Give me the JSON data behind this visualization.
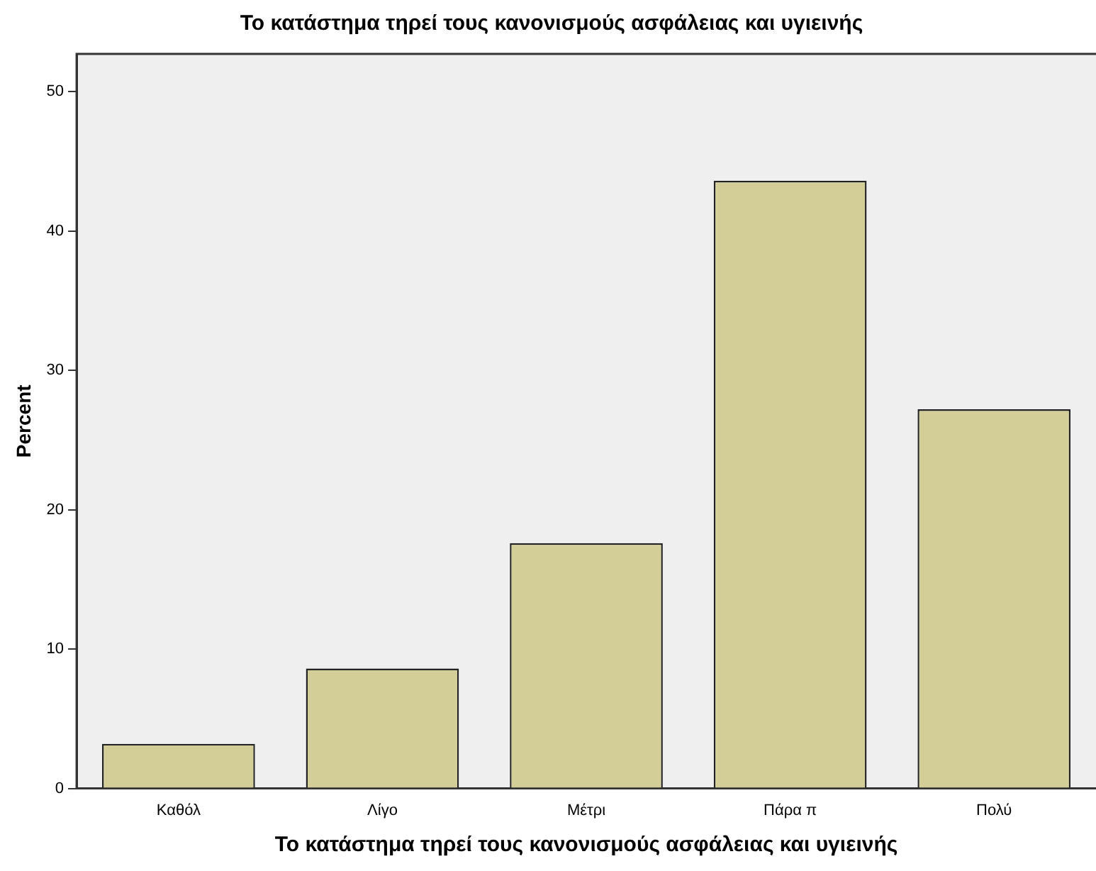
{
  "chart_data": {
    "type": "bar",
    "title": "Το κατάστημα τηρεί τους κανονισμούς ασφάλειας και υγιεινής",
    "xlabel": "Το κατάστημα τηρεί τους κανονισμούς ασφάλειας και υγιεινής",
    "ylabel": "Percent",
    "categories": [
      "Καθόλ",
      "Λίγο",
      "Μέτρι",
      "Πάρα π",
      "Πολύ"
    ],
    "values": [
      3.2,
      8.6,
      17.6,
      43.6,
      27.2
    ],
    "color": "#d3ce97",
    "ylim": [
      0,
      52.7
    ],
    "yticks": [
      0,
      10,
      20,
      30,
      40,
      50
    ],
    "grid": false,
    "legend": false
  }
}
